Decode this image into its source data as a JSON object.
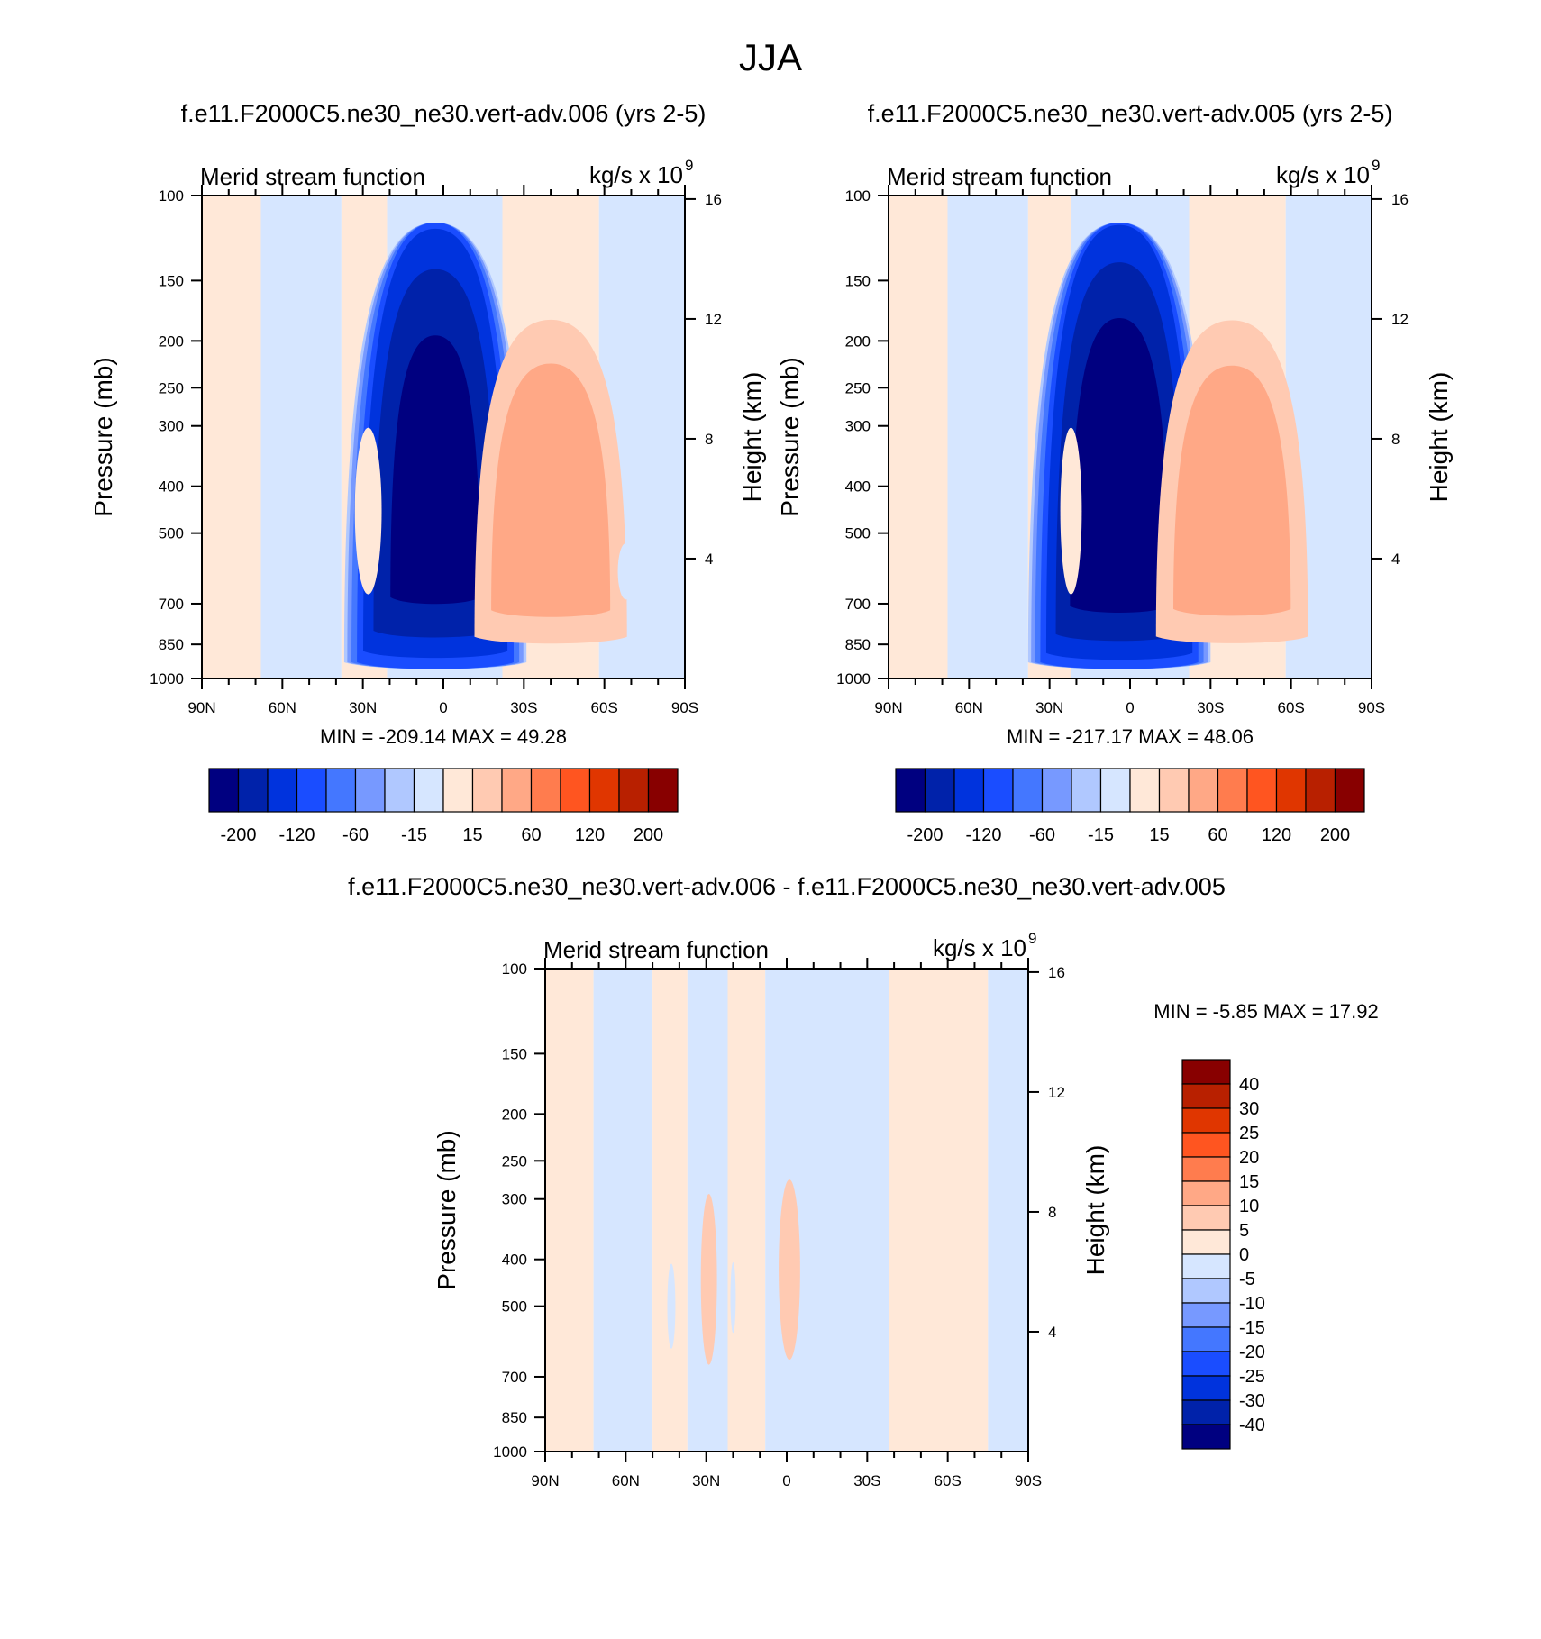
{
  "figure": {
    "title": "JJA",
    "colors": {
      "field": [
        "#000080",
        "#0022aa",
        "#0033dd",
        "#1a4dff",
        "#4477ff",
        "#7799ff",
        "#b0c8ff",
        "#d6e6ff",
        "#ffe8d8",
        "#ffcab2",
        "#ffa886",
        "#ff7c4e",
        "#ff5520",
        "#e03600",
        "#b82000",
        "#880000"
      ],
      "diff": [
        "#000080",
        "#0022aa",
        "#0033dd",
        "#1a4dff",
        "#4477ff",
        "#7799ff",
        "#b0c8ff",
        "#d6e6ff",
        "#ffe8d8",
        "#ffcab2",
        "#ffa886",
        "#ff7c4e",
        "#ff5520",
        "#e03600",
        "#b82000",
        "#880000"
      ]
    }
  },
  "chart_data": [
    {
      "type": "heatmap",
      "title": "f.e11.F2000C5.ne30_ne30.vert-adv.006 (yrs 2-5)",
      "left_label": "Merid stream function",
      "units_base": "kg/s x 10",
      "units_exp": "9",
      "xlabel": "",
      "ylabel": "Pressure (mb)",
      "y2label": "Height (km)",
      "xticks": [
        "90N",
        "60N",
        "30N",
        "0",
        "30S",
        "60S",
        "90S"
      ],
      "xtick_values": [
        90,
        60,
        30,
        0,
        -30,
        -60,
        -90
      ],
      "yticks": [
        "100",
        "150",
        "200",
        "250",
        "300",
        "400",
        "500",
        "700",
        "850",
        "1000"
      ],
      "ytick_values": [
        100,
        150,
        200,
        250,
        300,
        400,
        500,
        700,
        850,
        1000
      ],
      "y2ticks": [
        "16",
        "12",
        "8",
        "4"
      ],
      "y2tick_values": [
        16,
        12,
        8,
        4
      ],
      "stats": "MIN = -209.14  MAX =  49.28",
      "colorbar_labels": [
        "-200",
        "-120",
        "-60",
        "-15",
        "15",
        "60",
        "120",
        "200"
      ],
      "features": [
        {
          "lat": 3,
          "p": 470,
          "dlat": 12,
          "dp": 240,
          "value": -209
        },
        {
          "lat": -40,
          "p": 480,
          "dlat": 11,
          "dp": 170,
          "value": 49
        },
        {
          "lat": 28,
          "p": 450,
          "dlat": 5,
          "dp": 170,
          "value": 6
        },
        {
          "lat": 48,
          "p": 510,
          "dlat": 3,
          "dp": 110,
          "value": -3
        },
        {
          "lat": -68,
          "p": 600,
          "dlat": 3,
          "dp": 80,
          "value": -3
        }
      ]
    },
    {
      "type": "heatmap",
      "title": "f.e11.F2000C5.ne30_ne30.vert-adv.005 (yrs 2-5)",
      "left_label": "Merid stream function",
      "units_base": "kg/s x 10",
      "units_exp": "9",
      "xlabel": "",
      "ylabel": "Pressure (mb)",
      "y2label": "Height (km)",
      "xticks": [
        "90N",
        "60N",
        "30N",
        "0",
        "30S",
        "60S",
        "90S"
      ],
      "xtick_values": [
        90,
        60,
        30,
        0,
        -30,
        -60,
        -90
      ],
      "yticks": [
        "100",
        "150",
        "200",
        "250",
        "300",
        "400",
        "500",
        "700",
        "850",
        "1000"
      ],
      "ytick_values": [
        100,
        150,
        200,
        250,
        300,
        400,
        500,
        700,
        850,
        1000
      ],
      "y2ticks": [
        "16",
        "12",
        "8",
        "4"
      ],
      "y2tick_values": [
        16,
        12,
        8,
        4
      ],
      "stats": "MIN = -217.17  MAX =  48.06",
      "colorbar_labels": [
        "-200",
        "-120",
        "-60",
        "-15",
        "15",
        "60",
        "120",
        "200"
      ],
      "features": [
        {
          "lat": 4,
          "p": 470,
          "dlat": 12,
          "dp": 240,
          "value": -217
        },
        {
          "lat": -38,
          "p": 480,
          "dlat": 11,
          "dp": 170,
          "value": 48
        },
        {
          "lat": 22,
          "p": 450,
          "dlat": 4,
          "dp": 170,
          "value": 5
        },
        {
          "lat": 50,
          "p": 560,
          "dlat": 3,
          "dp": 90,
          "value": -3
        },
        {
          "lat": -70,
          "p": 520,
          "dlat": 3,
          "dp": 90,
          "value": -3
        }
      ]
    },
    {
      "type": "heatmap",
      "title": "f.e11.F2000C5.ne30_ne30.vert-adv.006 - f.e11.F2000C5.ne30_ne30.vert-adv.005",
      "left_label": "Merid stream function",
      "units_base": "kg/s x 10",
      "units_exp": "9",
      "xlabel": "",
      "ylabel": "Pressure (mb)",
      "y2label": "Height (km)",
      "xticks": [
        "90N",
        "60N",
        "30N",
        "0",
        "30S",
        "60S",
        "90S"
      ],
      "xtick_values": [
        90,
        60,
        30,
        0,
        -30,
        -60,
        -90
      ],
      "yticks": [
        "100",
        "150",
        "200",
        "250",
        "300",
        "400",
        "500",
        "700",
        "850",
        "1000"
      ],
      "ytick_values": [
        100,
        150,
        200,
        250,
        300,
        400,
        500,
        700,
        850,
        1000
      ],
      "y2ticks": [
        "16",
        "12",
        "8",
        "4"
      ],
      "y2tick_values": [
        16,
        12,
        8,
        4
      ],
      "stats": "MIN =  -5.85  MAX =  17.92",
      "colorbar_labels": [
        "40",
        "30",
        "25",
        "20",
        "15",
        "10",
        "5",
        "0",
        "-5",
        "-10",
        "-15",
        "-20",
        "-25",
        "-30",
        "-40"
      ],
      "bands": [
        {
          "lat0": 90,
          "lat1": 72,
          "value": 1
        },
        {
          "lat0": 72,
          "lat1": 50,
          "value": -1
        },
        {
          "lat0": 50,
          "lat1": 37,
          "value": 1
        },
        {
          "lat0": 37,
          "lat1": 22,
          "value": -1
        },
        {
          "lat0": 22,
          "lat1": 8,
          "value": 1
        },
        {
          "lat0": 8,
          "lat1": -38,
          "value": -1
        },
        {
          "lat0": -38,
          "lat1": -75,
          "value": 1
        },
        {
          "lat0": -75,
          "lat1": -90,
          "value": -1
        }
      ],
      "features": [
        {
          "lat": -1,
          "p": 420,
          "dlat": 4,
          "dp": 170,
          "value": 6
        },
        {
          "lat": 29,
          "p": 440,
          "dlat": 3,
          "dp": 170,
          "value": 6
        },
        {
          "lat": 43,
          "p": 500,
          "dlat": 1.5,
          "dp": 100,
          "value": -3
        },
        {
          "lat": 20,
          "p": 480,
          "dlat": 1,
          "dp": 80,
          "value": -3
        }
      ]
    }
  ]
}
